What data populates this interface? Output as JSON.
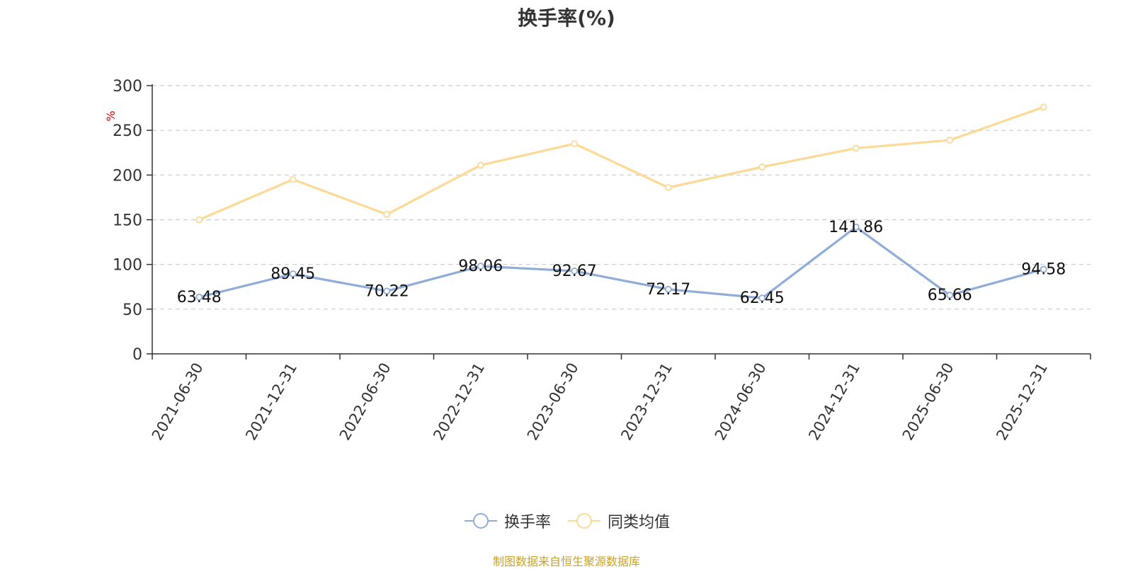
{
  "chart_data": {
    "type": "line",
    "title": "换手率(%)",
    "ylabel": "%",
    "xlabel": "",
    "ylim": [
      0,
      300
    ],
    "yticks": [
      0,
      50,
      100,
      150,
      200,
      250,
      300
    ],
    "grid": true,
    "legend_position": "bottom",
    "categories": [
      "2021-06-30",
      "2021-12-31",
      "2022-06-30",
      "2022-12-31",
      "2023-06-30",
      "2023-12-31",
      "2024-06-30",
      "2024-12-31",
      "2025-06-30",
      "2025-12-31"
    ],
    "series": [
      {
        "name": "换手率",
        "color": "#8fadd6",
        "values": [
          63.48,
          89.45,
          70.22,
          98.06,
          92.67,
          72.17,
          62.45,
          141.86,
          65.66,
          94.58
        ],
        "labels": [
          "63.48",
          "89.45",
          "70.22",
          "98.06",
          "92.67",
          "72.17",
          "62.45",
          "141.86",
          "65.66",
          "94.58"
        ]
      },
      {
        "name": "同类均值",
        "color": "#fcd995",
        "values": [
          150,
          195,
          156,
          211,
          235,
          186,
          209,
          230,
          239,
          276
        ]
      }
    ]
  },
  "source": {
    "text": "制图数据来自恒生聚源数据库",
    "color": "#c9a227"
  },
  "ylabel_color": "#e00000"
}
